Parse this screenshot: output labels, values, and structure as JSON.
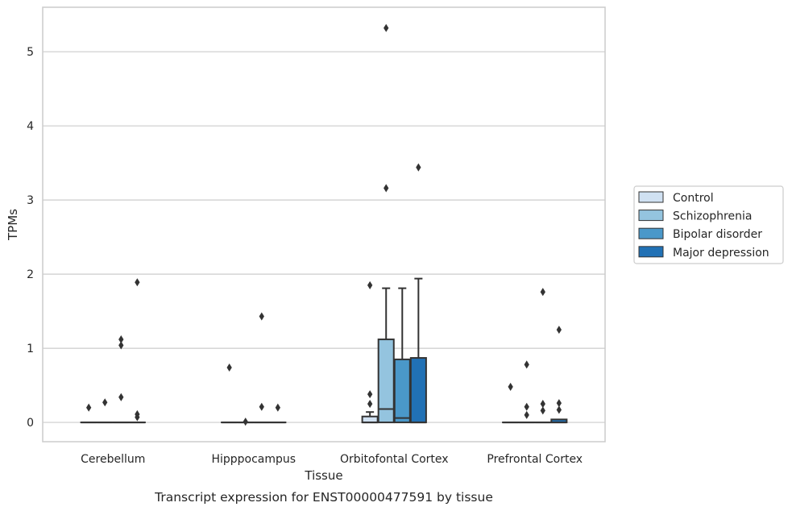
{
  "chart_data": {
    "type": "box",
    "title": "Transcript expression for ENST00000477591 by tissue",
    "xlabel": "Tissue",
    "ylabel": "TPMs",
    "ylim": [
      -0.26,
      5.6
    ],
    "yticks": [
      0,
      1,
      2,
      3,
      4,
      5
    ],
    "grid": true,
    "legend_position": "right",
    "categories": [
      "Cerebellum",
      "Hipppocampus",
      "Orbitofontal Cortex",
      "Prefrontal Cortex"
    ],
    "series": [
      {
        "name": "Control",
        "color": "#d0e1f2",
        "boxes": [
          {
            "q1": 0,
            "median": 0,
            "q3": 0,
            "whislo": 0,
            "whishi": 0,
            "fliers": [
              0.2
            ]
          },
          {
            "q1": 0,
            "median": 0,
            "q3": 0,
            "whislo": 0,
            "whishi": 0,
            "fliers": [
              0.74
            ]
          },
          {
            "q1": 0,
            "median": 0,
            "q3": 0.08,
            "whislo": 0,
            "whishi": 0.14,
            "fliers": [
              0.25,
              0.38,
              1.85
            ]
          },
          {
            "q1": 0,
            "median": 0,
            "q3": 0,
            "whislo": 0,
            "whishi": 0,
            "fliers": [
              0.48
            ]
          }
        ]
      },
      {
        "name": "Schizophrenia",
        "color": "#94c4df",
        "boxes": [
          {
            "q1": 0,
            "median": 0,
            "q3": 0,
            "whislo": 0,
            "whishi": 0,
            "fliers": [
              0.27
            ]
          },
          {
            "q1": 0,
            "median": 0,
            "q3": 0,
            "whislo": 0,
            "whishi": 0,
            "fliers": [
              0.01
            ]
          },
          {
            "q1": 0,
            "median": 0.18,
            "q3": 1.12,
            "whislo": 0,
            "whishi": 1.81,
            "fliers": [
              3.16,
              5.32
            ]
          },
          {
            "q1": 0,
            "median": 0,
            "q3": 0,
            "whislo": 0,
            "whishi": 0,
            "fliers": [
              0.1,
              0.21,
              0.78
            ]
          }
        ]
      },
      {
        "name": "Bipolar disorder",
        "color": "#4a98c9",
        "boxes": [
          {
            "q1": 0,
            "median": 0,
            "q3": 0,
            "whislo": 0,
            "whishi": 0,
            "fliers": [
              0.34,
              1.04,
              1.12
            ]
          },
          {
            "q1": 0,
            "median": 0,
            "q3": 0,
            "whislo": 0,
            "whishi": 0,
            "fliers": [
              0.21,
              1.43
            ]
          },
          {
            "q1": 0,
            "median": 0.06,
            "q3": 0.85,
            "whislo": 0,
            "whishi": 1.81,
            "fliers": []
          },
          {
            "q1": 0,
            "median": 0,
            "q3": 0,
            "whislo": 0,
            "whishi": 0,
            "fliers": [
              0.16,
              0.25,
              1.76
            ]
          }
        ]
      },
      {
        "name": "Major depression",
        "color": "#2171b5",
        "boxes": [
          {
            "q1": 0,
            "median": 0,
            "q3": 0,
            "whislo": 0,
            "whishi": 0,
            "fliers": [
              0.07,
              0.11,
              1.89
            ]
          },
          {
            "q1": 0,
            "median": 0,
            "q3": 0,
            "whislo": 0,
            "whishi": 0,
            "fliers": [
              0.2
            ]
          },
          {
            "q1": 0,
            "median": 0,
            "q3": 0.87,
            "whislo": 0,
            "whishi": 1.94,
            "fliers": [
              3.44
            ]
          },
          {
            "q1": 0,
            "median": 0,
            "q3": 0.04,
            "whislo": 0,
            "whishi": 0.04,
            "fliers": [
              0.17,
              0.26,
              1.25
            ]
          }
        ]
      }
    ],
    "colors": {
      "grid": "#cccccc",
      "spine": "#cccccc",
      "edge": "#333333",
      "legend_border": "#cccccc"
    }
  }
}
